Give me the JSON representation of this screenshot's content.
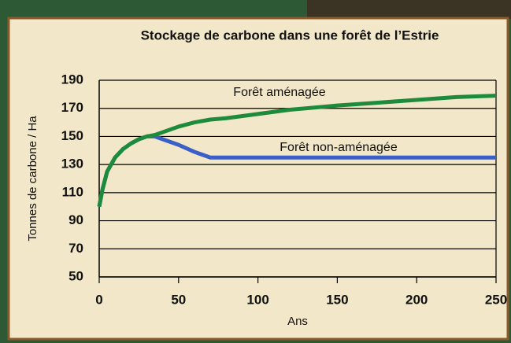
{
  "chart_data": {
    "type": "line",
    "title": "Stockage de carbone dans une forêt de l’Estrie",
    "x_label": "Ans",
    "y_label": "Tonnes de carbone / Ha",
    "xlim": [
      0,
      250
    ],
    "xticks": [
      0,
      50,
      100,
      150,
      200,
      250
    ],
    "ylim": [
      50,
      190
    ],
    "yticks": [
      50,
      70,
      90,
      110,
      130,
      150,
      170,
      190
    ],
    "grid": true,
    "series": [
      {
        "name": "Forêt aménagée",
        "color": "#1e8a3c",
        "x": [
          0,
          2,
          5,
          10,
          15,
          20,
          25,
          30,
          35,
          40,
          50,
          60,
          70,
          80,
          100,
          120,
          150,
          175,
          200,
          225,
          250
        ],
        "values": [
          100,
          112,
          125,
          135,
          141,
          145,
          148,
          150,
          151,
          153,
          157,
          160,
          162,
          163,
          166,
          169,
          172,
          174,
          176,
          178,
          179
        ]
      },
      {
        "name": "Forêt non-aménagée",
        "color": "#3a5fc8",
        "x": [
          0,
          2,
          5,
          10,
          15,
          20,
          25,
          30,
          35,
          40,
          50,
          60,
          70,
          80,
          100,
          150,
          200,
          250
        ],
        "values": [
          100,
          112,
          125,
          135,
          141,
          145,
          148,
          150,
          150,
          148,
          144,
          139,
          135,
          135,
          135,
          135,
          135,
          135
        ]
      }
    ]
  }
}
